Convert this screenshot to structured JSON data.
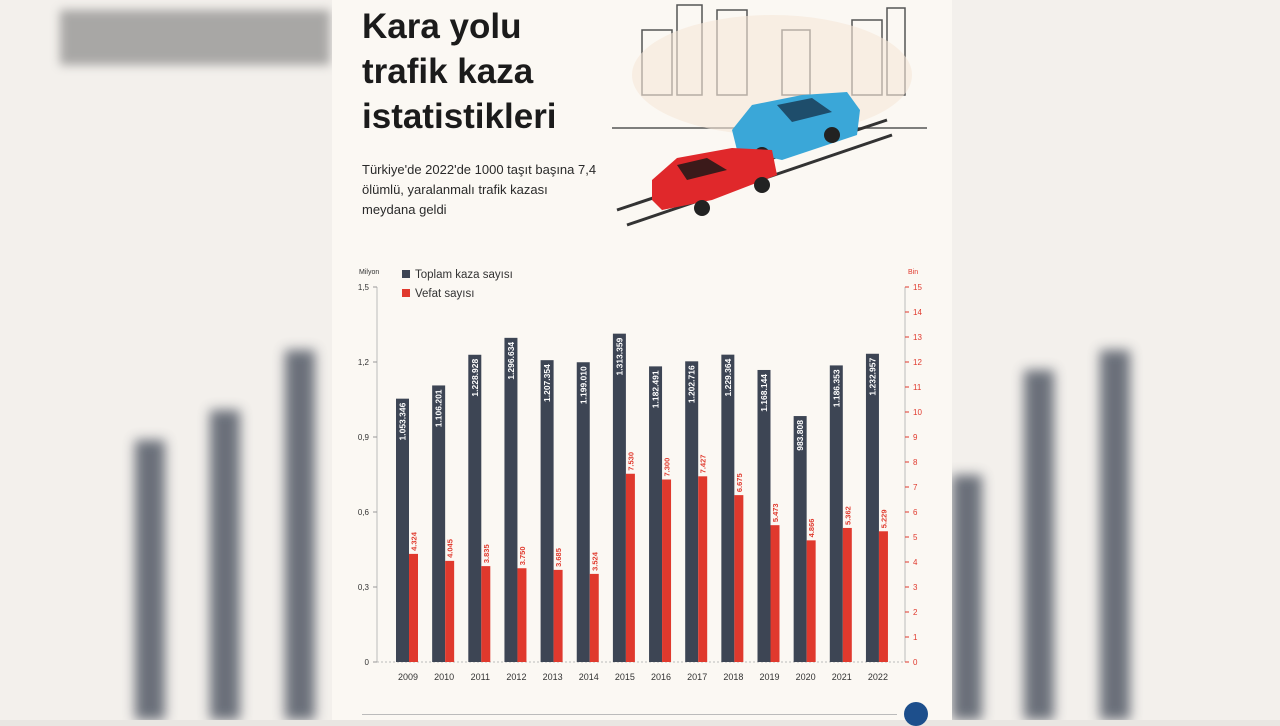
{
  "header": {
    "title_lines": [
      "Kara yolu",
      "trafik kaza",
      "istatistikleri"
    ],
    "subtitle": "Türkiye'de 2022'de 1000 taşıt başına 7,4 ölümlü, yaralanmalı trafik kazası meydana geldi"
  },
  "colors": {
    "total": "#3d4554",
    "deaths": "#e0392d",
    "background": "#fbf8f3"
  },
  "chart_data": {
    "type": "bar",
    "title": "Kara yolu trafik kaza istatistikleri",
    "categories": [
      "2009",
      "2010",
      "2011",
      "2012",
      "2013",
      "2014",
      "2015",
      "2016",
      "2017",
      "2018",
      "2019",
      "2020",
      "2021",
      "2022"
    ],
    "left_axis": {
      "unit": "Milyon",
      "range": [
        0,
        1.5
      ],
      "ticks": [
        "0",
        "0,3",
        "0,6",
        "0,9",
        "1,2",
        "1,5"
      ],
      "tick_values": [
        0,
        0.3,
        0.6,
        0.9,
        1.2,
        1.5
      ]
    },
    "right_axis": {
      "unit": "Bin",
      "range": [
        0,
        15
      ],
      "ticks": [
        "0",
        "1",
        "2",
        "3",
        "4",
        "5",
        "6",
        "7",
        "8",
        "9",
        "10",
        "11",
        "12",
        "13",
        "14",
        "15"
      ]
    },
    "legend": {
      "position": "top-left",
      "entries": [
        "Toplam kaza sayısı",
        "Vefat sayısı"
      ]
    },
    "series": [
      {
        "name": "Toplam kaza sayısı",
        "axis": "left",
        "values": [
          1053346,
          1106201,
          1228928,
          1296634,
          1207354,
          1199010,
          1313359,
          1182491,
          1202716,
          1229364,
          1168144,
          983808,
          1186353,
          1232957
        ],
        "labels": [
          "1.053.346",
          "1.106.201",
          "1.228.928",
          "1.296.634",
          "1.207.354",
          "1.199.010",
          "1.313.359",
          "1.182.491",
          "1.202.716",
          "1.229.364",
          "1.168.144",
          "983.808",
          "1.186.353",
          "1.232.957"
        ]
      },
      {
        "name": "Vefat sayısı",
        "axis": "right",
        "values": [
          4324,
          4045,
          3835,
          3750,
          3685,
          3524,
          7530,
          7300,
          7427,
          6675,
          5473,
          4866,
          5362,
          5229
        ],
        "labels": [
          "4.324",
          "4.045",
          "3.835",
          "3.750",
          "3.685",
          "3.524",
          "7.530",
          "7.300",
          "7.427",
          "6.675",
          "5.473",
          "4.866",
          "5.362",
          "5.229"
        ]
      }
    ]
  }
}
